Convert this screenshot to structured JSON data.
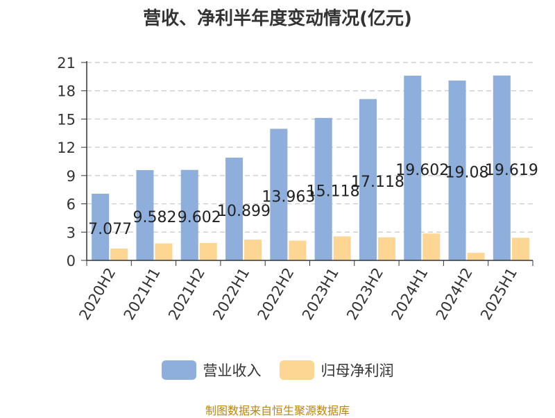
{
  "chart_data": {
    "type": "bar",
    "title": "营收、净利半年度变动情况(亿元)",
    "categories": [
      "2020H2",
      "2021H1",
      "2021H2",
      "2022H1",
      "2022H2",
      "2023H1",
      "2023H2",
      "2024H1",
      "2024H2",
      "2025H1"
    ],
    "series": [
      {
        "name": "营业收入",
        "color": "#8eaedc",
        "values": [
          7.077,
          9.582,
          9.602,
          10.899,
          13.963,
          15.118,
          17.118,
          19.602,
          19.08,
          19.619
        ],
        "data_labels": [
          "7.077",
          "9.582",
          "9.602",
          "10.899",
          "13.963",
          "15.118",
          "17.118",
          "19.602",
          "19.08",
          "19.619"
        ]
      },
      {
        "name": "归母净利润",
        "color": "#fdd694",
        "values": [
          1.25,
          1.8,
          1.85,
          2.2,
          2.1,
          2.55,
          2.45,
          2.85,
          0.8,
          2.4
        ]
      }
    ],
    "ylim": [
      0,
      21
    ],
    "yticks": [
      "0",
      "3",
      "6",
      "9",
      "12",
      "15",
      "18",
      "21"
    ],
    "grid": true,
    "legend_position": "bottom-center"
  },
  "source": "制图数据来自恒生聚源数据库"
}
